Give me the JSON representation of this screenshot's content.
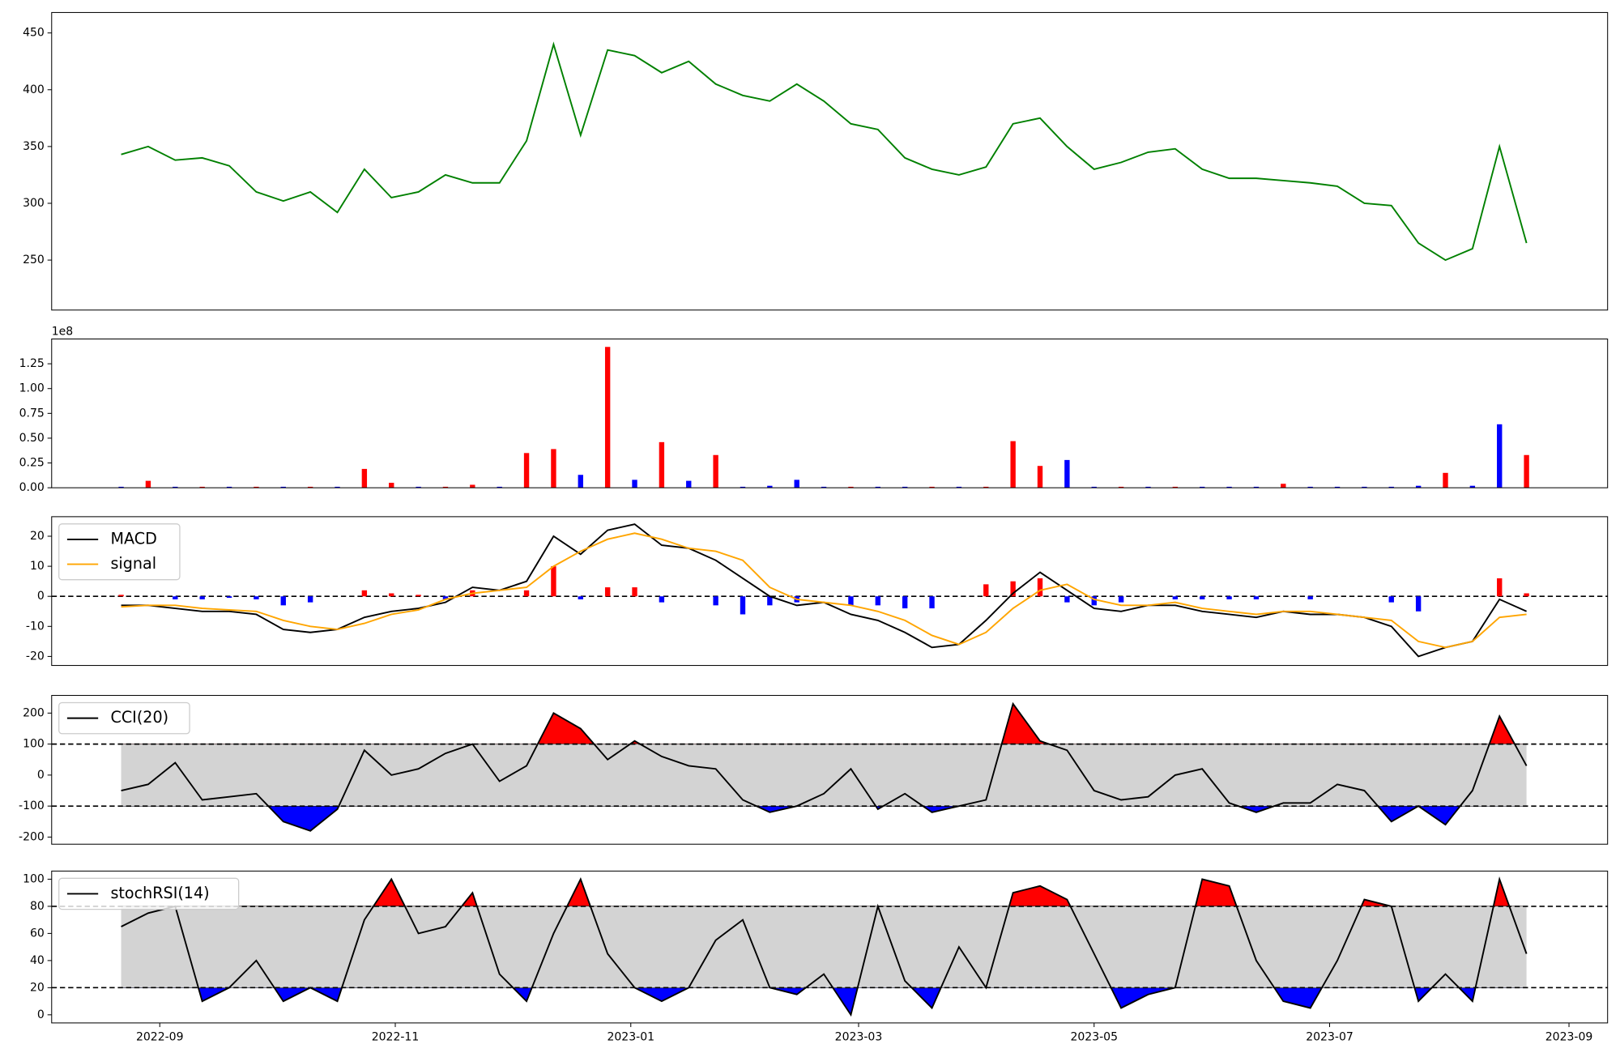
{
  "chart_data": [
    {
      "type": "line",
      "x": [
        19226,
        19233,
        19240,
        19247,
        19254,
        19261,
        19268,
        19275,
        19282,
        19289,
        19296,
        19303,
        19310,
        19317,
        19324,
        19331,
        19338,
        19345,
        19352,
        19359,
        19366,
        19373,
        19380,
        19387,
        19394,
        19401,
        19408,
        19415,
        19422,
        19429,
        19436,
        19443,
        19450,
        19457,
        19464,
        19471,
        19478,
        19485,
        19492,
        19499,
        19506,
        19513,
        19520,
        19527,
        19534,
        19541,
        19548,
        19555,
        19562,
        19569,
        19576,
        19583,
        19590
      ],
      "values": [
        343,
        350,
        338,
        340,
        333,
        310,
        302,
        310,
        292,
        330,
        305,
        310,
        325,
        318,
        318,
        355,
        440,
        360,
        435,
        430,
        415,
        425,
        405,
        395,
        390,
        405,
        390,
        370,
        365,
        340,
        330,
        325,
        332,
        370,
        375,
        350,
        330,
        336,
        345,
        348,
        330,
        322,
        322,
        320,
        318,
        315,
        300,
        298,
        265,
        250,
        260,
        350,
        265
      ],
      "color": "#008000",
      "xlim": [
        19208,
        19611
      ],
      "ylim": [
        206,
        468
      ],
      "yticks": [
        250,
        300,
        350,
        400,
        450
      ]
    },
    {
      "type": "bar",
      "x": [
        19226,
        19233,
        19240,
        19247,
        19254,
        19261,
        19268,
        19275,
        19282,
        19289,
        19296,
        19303,
        19310,
        19317,
        19324,
        19331,
        19338,
        19345,
        19352,
        19359,
        19366,
        19373,
        19380,
        19387,
        19394,
        19401,
        19408,
        19415,
        19422,
        19429,
        19436,
        19443,
        19450,
        19457,
        19464,
        19471,
        19478,
        19485,
        19492,
        19499,
        19506,
        19513,
        19520,
        19527,
        19534,
        19541,
        19548,
        19555,
        19562,
        19569,
        19576,
        19583,
        19590
      ],
      "values": [
        0.01,
        0.07,
        0.01,
        0.01,
        0.01,
        0.01,
        0.01,
        0.01,
        0.01,
        0.19,
        0.05,
        0.01,
        0.01,
        0.03,
        0.01,
        0.35,
        0.39,
        0.13,
        1.42,
        0.08,
        0.46,
        0.07,
        0.33,
        0.01,
        0.02,
        0.08,
        0.01,
        0.01,
        0.01,
        0.01,
        0.01,
        0.01,
        0.01,
        0.47,
        0.22,
        0.28,
        0.01,
        0.01,
        0.01,
        0.01,
        0.01,
        0.01,
        0.01,
        0.04,
        0.01,
        0.01,
        0.01,
        0.01,
        0.02,
        0.15,
        0.02,
        0.64,
        0.33
      ],
      "colors": [
        "blue",
        "red",
        "blue",
        "red",
        "blue",
        "red",
        "blue",
        "red",
        "blue",
        "red",
        "red",
        "blue",
        "red",
        "red",
        "blue",
        "red",
        "red",
        "blue",
        "red",
        "blue",
        "red",
        "blue",
        "red",
        "blue",
        "blue",
        "blue",
        "blue",
        "red",
        "blue",
        "blue",
        "red",
        "blue",
        "red",
        "red",
        "red",
        "blue",
        "blue",
        "red",
        "blue",
        "red",
        "blue",
        "blue",
        "blue",
        "red",
        "blue",
        "blue",
        "blue",
        "blue",
        "blue",
        "red",
        "blue",
        "blue",
        "red"
      ],
      "offset_label": "1e8",
      "xlim": [
        19208,
        19611
      ],
      "ylim": [
        0,
        1.5
      ],
      "yticks": [
        {
          "value": 0,
          "label": "0.00"
        },
        {
          "value": 0.25,
          "label": "0.25"
        },
        {
          "value": 0.5,
          "label": "0.50"
        },
        {
          "value": 0.75,
          "label": "0.75"
        },
        {
          "value": 1,
          "label": "1.00"
        },
        {
          "value": 1.25,
          "label": "1.25"
        }
      ]
    },
    {
      "type": "macd",
      "x": [
        19226,
        19233,
        19240,
        19247,
        19254,
        19261,
        19268,
        19275,
        19282,
        19289,
        19296,
        19303,
        19310,
        19317,
        19324,
        19331,
        19338,
        19345,
        19352,
        19359,
        19366,
        19373,
        19380,
        19387,
        19394,
        19401,
        19408,
        19415,
        19422,
        19429,
        19436,
        19443,
        19450,
        19457,
        19464,
        19471,
        19478,
        19485,
        19492,
        19499,
        19506,
        19513,
        19520,
        19527,
        19534,
        19541,
        19548,
        19555,
        19562,
        19569,
        19576,
        19583,
        19590
      ],
      "series": [
        {
          "name": "MACD",
          "color": "#000000",
          "values": [
            -3,
            -3,
            -4,
            -5,
            -5,
            -6,
            -11,
            -12,
            -11,
            -7,
            -5,
            -4,
            -2,
            3,
            2,
            5,
            20,
            14,
            22,
            24,
            17,
            16,
            12,
            6,
            0,
            -3,
            -2,
            -6,
            -8,
            -12,
            -17,
            -16,
            -8,
            1,
            8,
            2,
            -4,
            -5,
            -3,
            -3,
            -5,
            -6,
            -7,
            -5,
            -6,
            -6,
            -7,
            -10,
            -20,
            -17,
            -15,
            -1,
            -5
          ]
        },
        {
          "name": "signal",
          "color": "#ffa500",
          "values": [
            -3.5,
            -3,
            -3,
            -4,
            -4.5,
            -5,
            -8,
            -10,
            -11,
            -9,
            -6,
            -4.5,
            -1,
            1,
            2,
            3,
            10,
            15,
            19,
            21,
            19,
            16,
            15,
            12,
            3,
            -1,
            -2,
            -3,
            -5,
            -8,
            -13,
            -16,
            -12,
            -4,
            2,
            4,
            -1,
            -3,
            -3,
            -2,
            -4,
            -5,
            -6,
            -5,
            -5,
            -6,
            -7,
            -8,
            -15,
            -17,
            -15,
            -7,
            -6
          ]
        }
      ],
      "histogram": {
        "pos_color": "#ff0000",
        "neg_color": "#0000ff",
        "values": [
          0.5,
          0,
          -1,
          -1,
          -0.5,
          -1,
          -3,
          -2,
          0,
          2,
          1,
          0.5,
          -1,
          2,
          0,
          2,
          10,
          -1,
          3,
          3,
          -2,
          0,
          -3,
          -6,
          -3,
          -2,
          0,
          -3,
          -3,
          -4,
          -4,
          0,
          4,
          5,
          6,
          -2,
          -3,
          -2,
          0,
          -1,
          -1,
          -1,
          -1,
          0,
          -1,
          0,
          0,
          -2,
          -5,
          0,
          0,
          6,
          1
        ]
      },
      "levels": [
        0
      ],
      "legend": "upper left",
      "xlim": [
        19208,
        19611
      ],
      "ylim": [
        -23,
        26.5
      ],
      "yticks": [
        -20,
        -10,
        0,
        10,
        20
      ]
    },
    {
      "type": "oscillator",
      "x": [
        19226,
        19233,
        19240,
        19247,
        19254,
        19261,
        19268,
        19275,
        19282,
        19289,
        19296,
        19303,
        19310,
        19317,
        19324,
        19331,
        19338,
        19345,
        19352,
        19359,
        19366,
        19373,
        19380,
        19387,
        19394,
        19401,
        19408,
        19415,
        19422,
        19429,
        19436,
        19443,
        19450,
        19457,
        19464,
        19471,
        19478,
        19485,
        19492,
        19499,
        19506,
        19513,
        19520,
        19527,
        19534,
        19541,
        19548,
        19555,
        19562,
        19569,
        19576,
        19583,
        19590
      ],
      "series": [
        {
          "name": "CCI(20)",
          "color": "#000000",
          "values": [
            -50,
            -30,
            40,
            -80,
            -70,
            -60,
            -150,
            -180,
            -110,
            80,
            0,
            20,
            70,
            100,
            -20,
            30,
            200,
            150,
            50,
            110,
            60,
            30,
            20,
            -80,
            -120,
            -100,
            -60,
            20,
            -110,
            -60,
            -120,
            -100,
            -80,
            230,
            110,
            80,
            -50,
            -80,
            -70,
            0,
            20,
            -90,
            -120,
            -90,
            -90,
            -30,
            -50,
            -150,
            -100,
            -160,
            -50,
            190,
            30
          ]
        }
      ],
      "levels": [
        100,
        -100
      ],
      "band_color": "#d3d3d3",
      "above_color": "#ff0000",
      "below_color": "#0000ff",
      "legend": "upper left",
      "xlim": [
        19208,
        19611
      ],
      "ylim": [
        -223,
        257
      ],
      "yticks": [
        -200,
        -100,
        0,
        100,
        200
      ]
    },
    {
      "type": "oscillator",
      "x": [
        19226,
        19233,
        19240,
        19247,
        19254,
        19261,
        19268,
        19275,
        19282,
        19289,
        19296,
        19303,
        19310,
        19317,
        19324,
        19331,
        19338,
        19345,
        19352,
        19359,
        19366,
        19373,
        19380,
        19387,
        19394,
        19401,
        19408,
        19415,
        19422,
        19429,
        19436,
        19443,
        19450,
        19457,
        19464,
        19471,
        19478,
        19485,
        19492,
        19499,
        19506,
        19513,
        19520,
        19527,
        19534,
        19541,
        19548,
        19555,
        19562,
        19569,
        19576,
        19583,
        19590
      ],
      "series": [
        {
          "name": "stochRSI(14)",
          "color": "#000000",
          "values": [
            65,
            75,
            80,
            10,
            20,
            40,
            10,
            20,
            10,
            70,
            100,
            60,
            65,
            90,
            30,
            10,
            60,
            100,
            45,
            20,
            10,
            20,
            55,
            70,
            20,
            15,
            30,
            0,
            80,
            25,
            5,
            50,
            20,
            90,
            95,
            85,
            45,
            5,
            15,
            20,
            100,
            95,
            40,
            10,
            5,
            40,
            85,
            80,
            10,
            30,
            10,
            100,
            45
          ]
        }
      ],
      "levels": [
        80,
        20
      ],
      "band_color": "#d3d3d3",
      "above_color": "#ff0000",
      "below_color": "#0000ff",
      "legend": "upper left",
      "xlim": [
        19208,
        19611
      ],
      "ylim": [
        -6,
        106
      ],
      "yticks": [
        0,
        20,
        40,
        60,
        80,
        100
      ],
      "xticks": [
        {
          "value": 19236,
          "label": "2022-09"
        },
        {
          "value": 19297,
          "label": "2022-11"
        },
        {
          "value": 19358,
          "label": "2023-01"
        },
        {
          "value": 19417,
          "label": "2023-03"
        },
        {
          "value": 19478,
          "label": "2023-05"
        },
        {
          "value": 19539,
          "label": "2023-07"
        },
        {
          "value": 19601,
          "label": "2023-09"
        }
      ]
    }
  ]
}
